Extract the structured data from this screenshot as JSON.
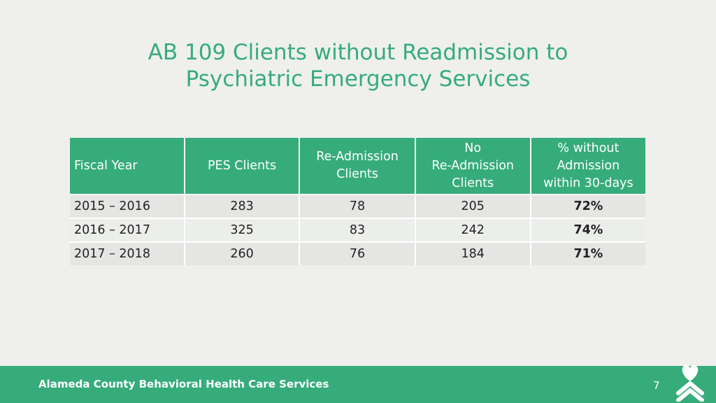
{
  "title": {
    "line1": "AB 109 Clients without Readmission to",
    "line2": "Psychiatric Emergency Services"
  },
  "table": {
    "headers": [
      [
        "Fiscal Year"
      ],
      [
        "PES Clients"
      ],
      [
        "Re-Admission",
        "Clients"
      ],
      [
        "No",
        "Re-Admission",
        "Clients"
      ],
      [
        "% without",
        "Admission",
        "within 30-days"
      ]
    ],
    "rows": [
      [
        "2015 – 2016",
        "283",
        "78",
        "205",
        "72%"
      ],
      [
        "2016 – 2017",
        "325",
        "83",
        "242",
        "74%"
      ],
      [
        "2017 – 2018",
        "260",
        "76",
        "184",
        "71%"
      ]
    ]
  },
  "footer": {
    "organization": "Alameda County Behavioral Health Care Services",
    "page_number": "7",
    "logo_icon": "heart-logo-icon"
  },
  "colors": {
    "accent": "#36ac7a",
    "background": "#eff0ee"
  }
}
